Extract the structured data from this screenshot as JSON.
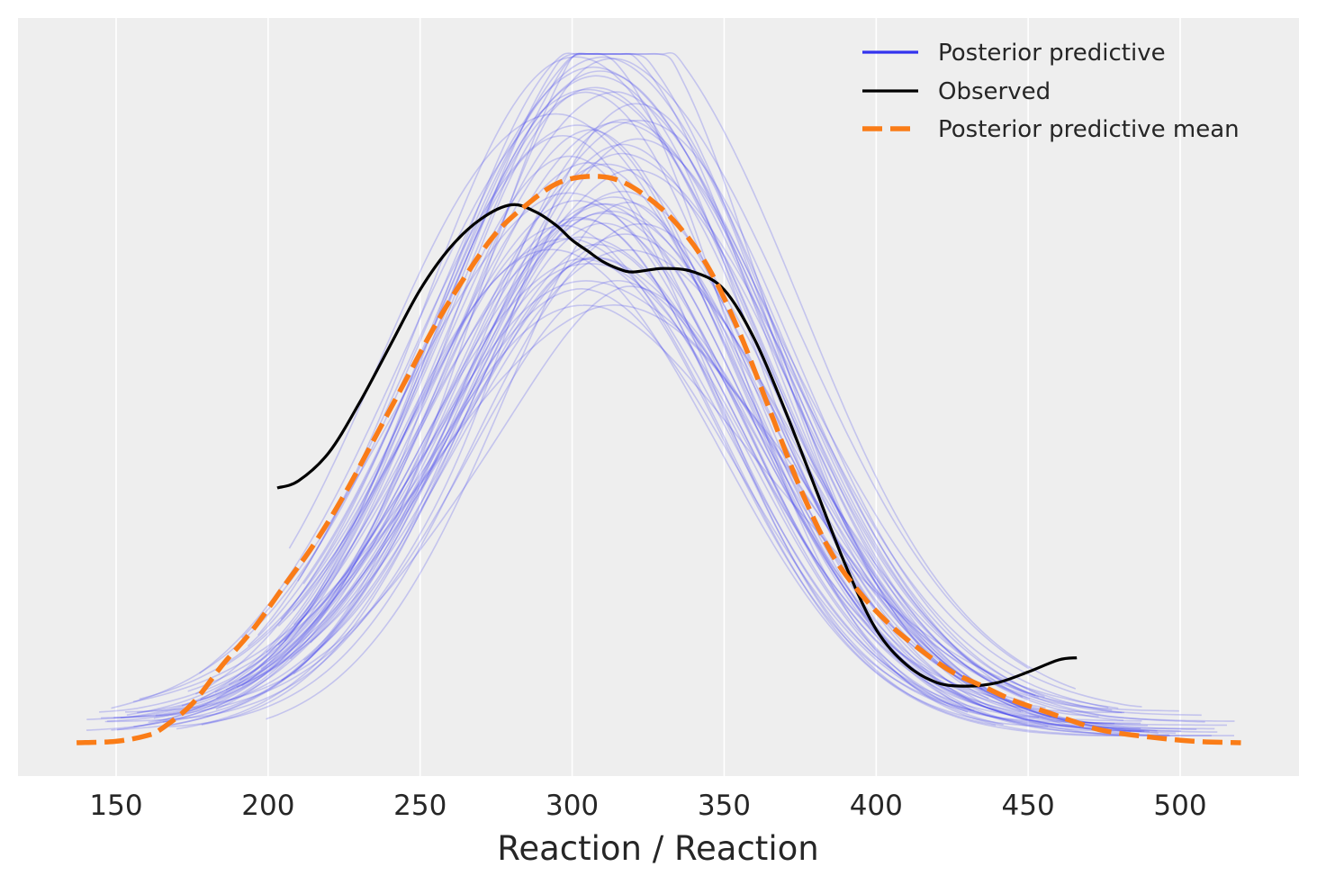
{
  "chart_data": {
    "type": "line",
    "title": "",
    "xlabel": "Reaction / Reaction",
    "ylabel": "",
    "xlim": [
      125,
      523
    ],
    "ylim": [
      0,
      1
    ],
    "grid": true,
    "legend_position": "top-right",
    "x_ticks": [
      "150",
      "200",
      "250",
      "300",
      "350",
      "400",
      "450",
      "500"
    ],
    "x_tick_values": [
      150,
      200,
      250,
      300,
      350,
      400,
      450,
      500
    ],
    "colors": {
      "posterior_predictive": "#3333ee",
      "observed": "#000000",
      "posterior_predictive_mean": "#fa7c17",
      "background": "#eeeeee"
    },
    "series": [
      {
        "name": "Posterior predictive",
        "style": "thin translucent lines (many draws)",
        "draws": 60
      },
      {
        "name": "Observed",
        "style": "solid black line",
        "x": [
          203,
          210,
          220,
          230,
          240,
          250,
          260,
          270,
          280,
          288,
          295,
          300,
          305,
          310,
          315,
          320,
          330,
          340,
          350,
          360,
          370,
          380,
          390,
          400,
          410,
          420,
          430,
          440,
          450,
          460,
          466
        ],
        "y": [
          0.36,
          0.37,
          0.41,
          0.48,
          0.56,
          0.64,
          0.7,
          0.74,
          0.76,
          0.75,
          0.73,
          0.71,
          0.695,
          0.68,
          0.67,
          0.665,
          0.67,
          0.665,
          0.64,
          0.57,
          0.47,
          0.36,
          0.25,
          0.16,
          0.11,
          0.085,
          0.08,
          0.085,
          0.1,
          0.117,
          0.12
        ]
      },
      {
        "name": "Posterior predictive mean",
        "style": "dashed orange line",
        "x": [
          137,
          150,
          160,
          165,
          175,
          185,
          195,
          205,
          215,
          225,
          235,
          245,
          255,
          265,
          275,
          285,
          295,
          305,
          315,
          325,
          335,
          345,
          355,
          365,
          375,
          385,
          395,
          405,
          415,
          425,
          435,
          445,
          455,
          465,
          475,
          490,
          505,
          520
        ],
        "y": [
          0.0,
          0.002,
          0.01,
          0.02,
          0.055,
          0.11,
          0.16,
          0.22,
          0.28,
          0.35,
          0.43,
          0.51,
          0.59,
          0.66,
          0.72,
          0.76,
          0.79,
          0.8,
          0.795,
          0.77,
          0.73,
          0.67,
          0.58,
          0.47,
          0.36,
          0.27,
          0.21,
          0.165,
          0.13,
          0.1,
          0.08,
          0.06,
          0.045,
          0.03,
          0.017,
          0.008,
          0.002,
          0.0
        ]
      }
    ]
  }
}
